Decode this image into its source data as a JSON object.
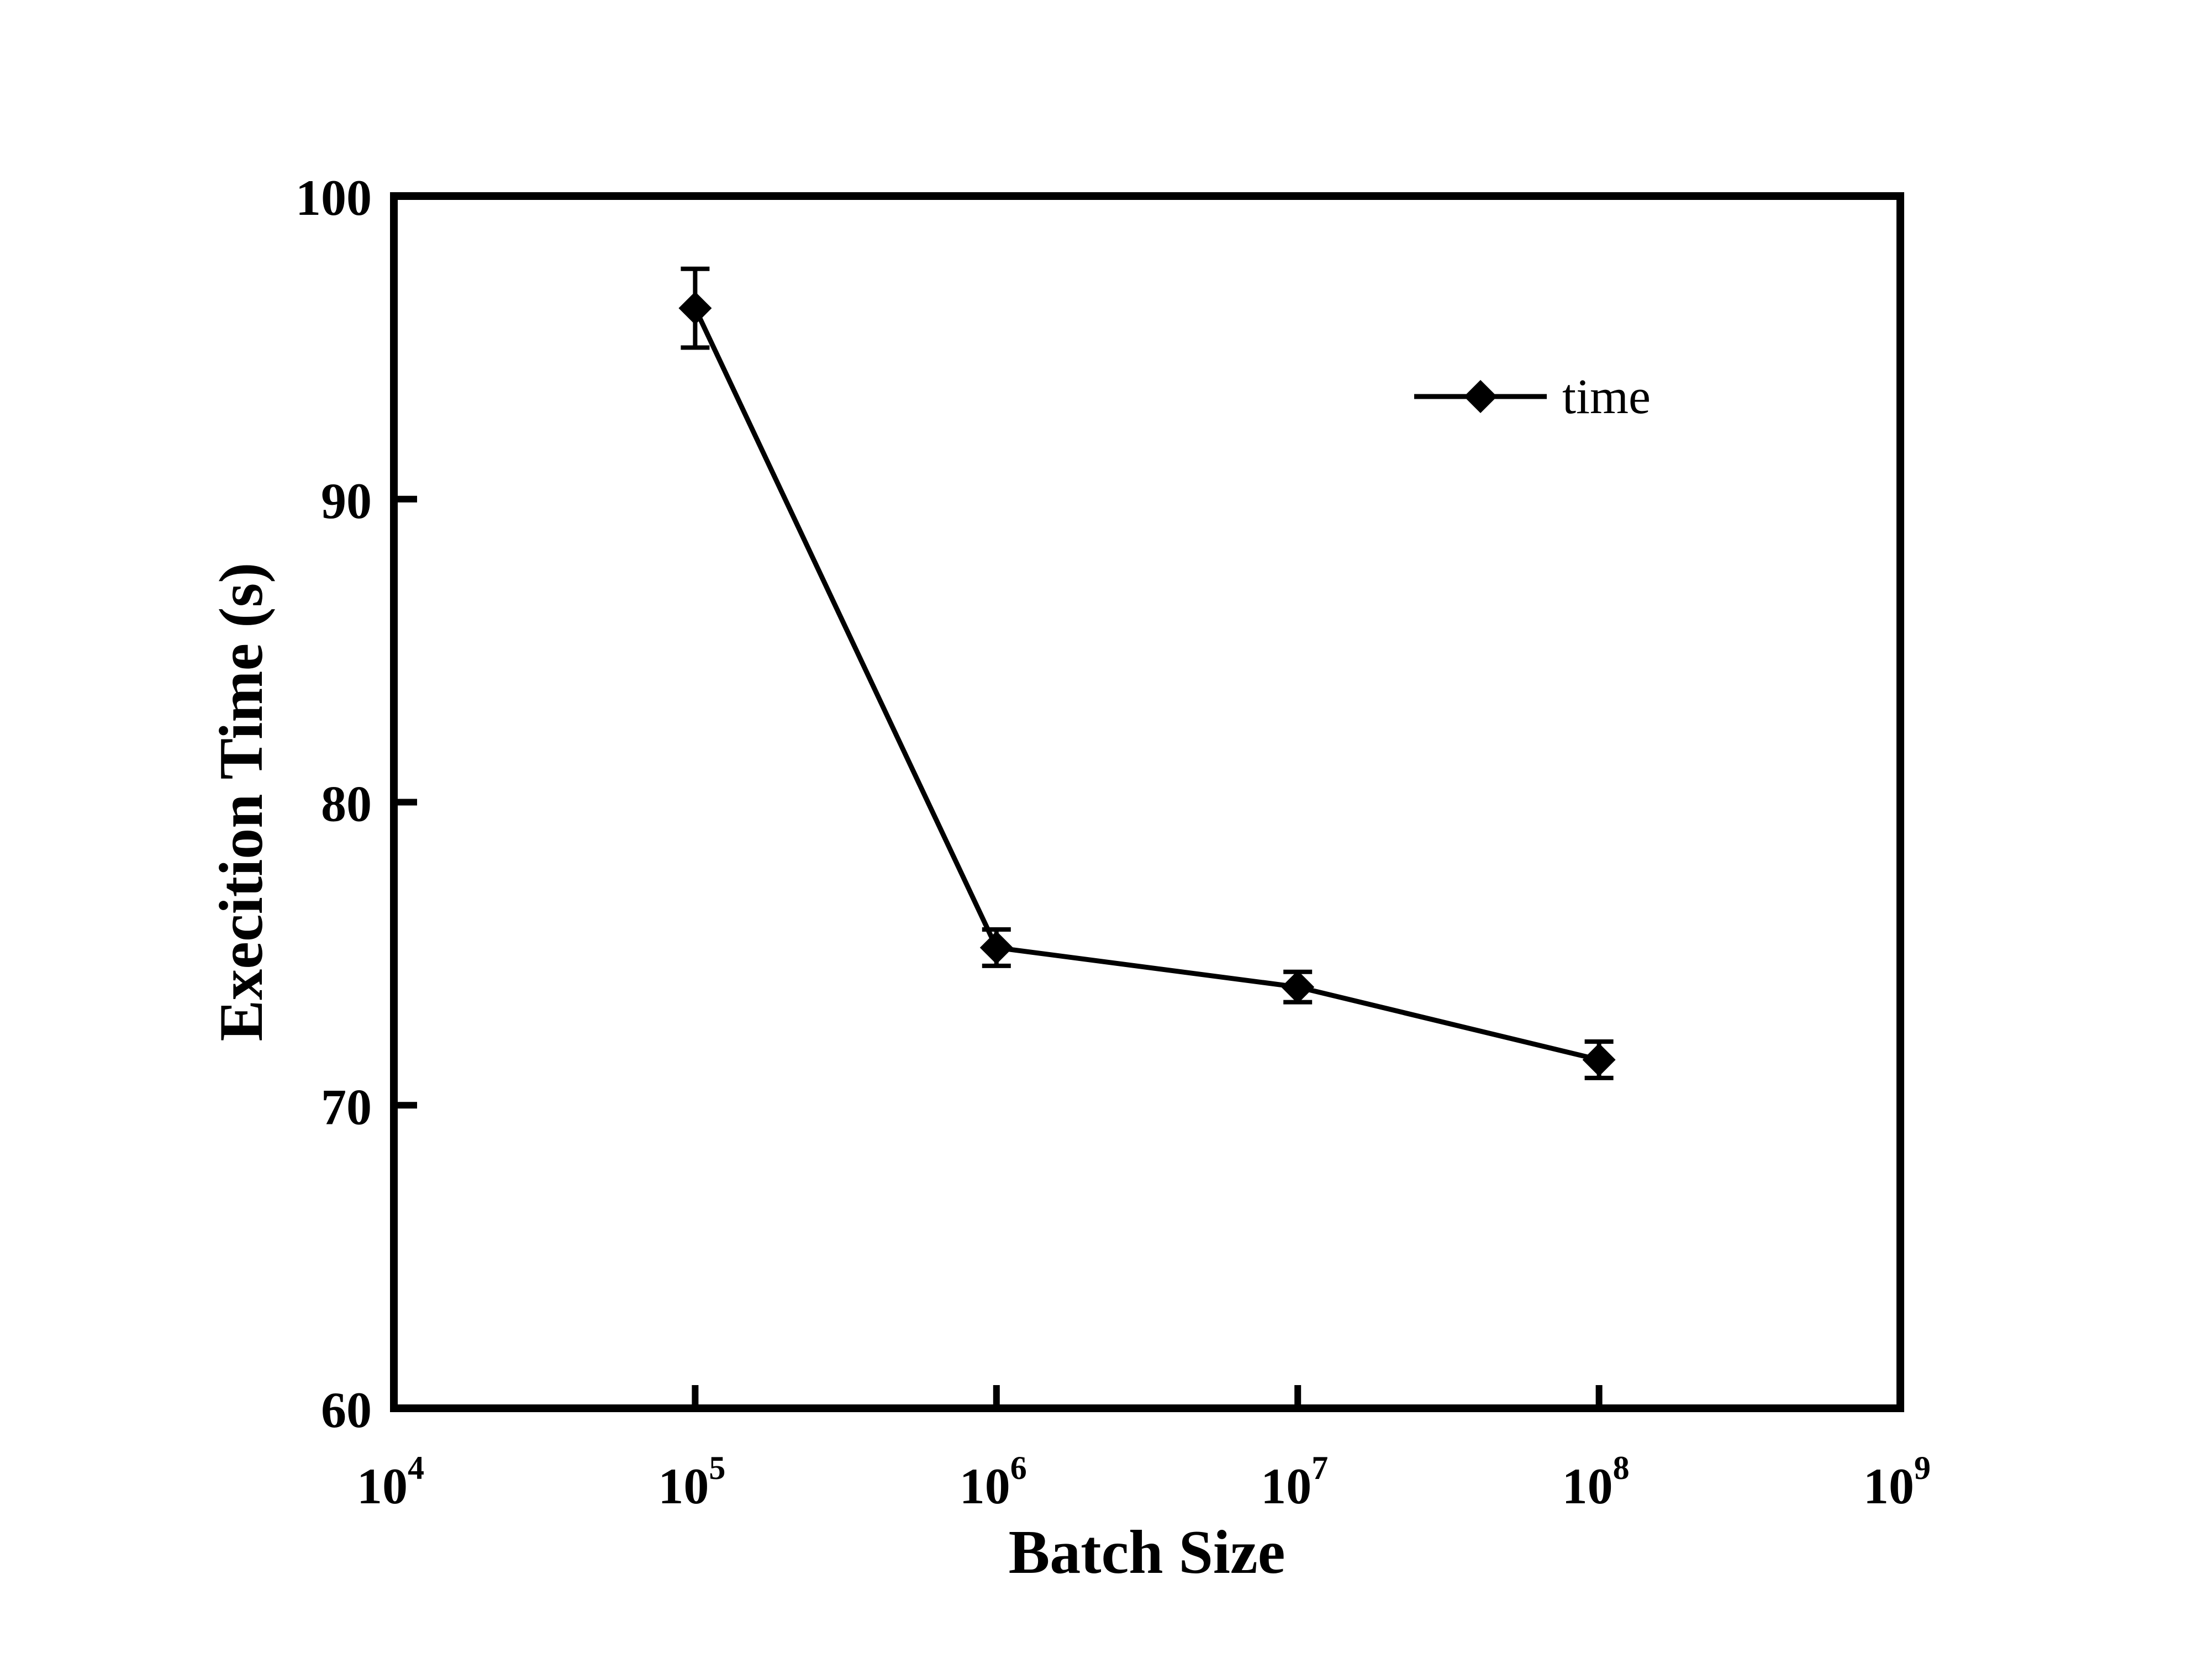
{
  "chart_data": {
    "type": "line",
    "title": "",
    "xlabel": "Batch Size",
    "ylabel": "Execition Time (s)",
    "x_scale": "log",
    "xlim": [
      10000,
      1000000000
    ],
    "ylim": [
      60,
      100
    ],
    "x_ticks": [
      {
        "value": 10000,
        "base": "10",
        "exp": "4"
      },
      {
        "value": 100000,
        "base": "10",
        "exp": "5"
      },
      {
        "value": 1000000,
        "base": "10",
        "exp": "6"
      },
      {
        "value": 10000000,
        "base": "10",
        "exp": "7"
      },
      {
        "value": 100000000,
        "base": "10",
        "exp": "8"
      },
      {
        "value": 1000000000,
        "base": "10",
        "exp": "9"
      }
    ],
    "y_ticks": [
      60,
      70,
      80,
      90,
      100
    ],
    "grid": false,
    "legend": {
      "position": "top-right"
    },
    "series": [
      {
        "name": "time",
        "color": "#000000",
        "marker": "diamond",
        "x": [
          100000,
          1000000,
          10000000,
          100000000
        ],
        "y": [
          96.3,
          75.2,
          73.9,
          71.5
        ],
        "error": [
          1.3,
          0.6,
          0.5,
          0.6
        ]
      }
    ]
  }
}
